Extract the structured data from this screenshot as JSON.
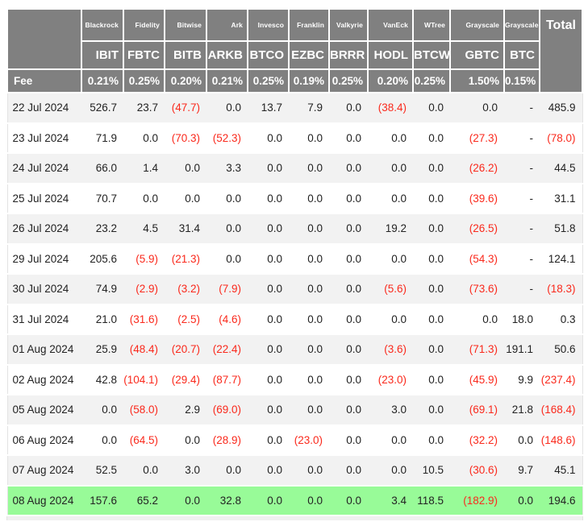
{
  "colors": {
    "header_bg": "#808080",
    "header_text": "#ffffff",
    "negative": "#fa291c",
    "text": "#222222",
    "zebra_row": "#f2f2f2",
    "white_row": "#ffffff",
    "highlight_row": "#98fb98"
  },
  "chart_data": {
    "type": "table",
    "fee_row_label": "Fee",
    "total_label": "Total",
    "value_placeholder": "-",
    "columns": [
      {
        "issuer": "Blackrock",
        "ticker": "IBIT",
        "fee": "0.21%"
      },
      {
        "issuer": "Fidelity",
        "ticker": "FBTC",
        "fee": "0.25%"
      },
      {
        "issuer": "Bitwise",
        "ticker": "BITB",
        "fee": "0.20%"
      },
      {
        "issuer": "Ark",
        "ticker": "ARKB",
        "fee": "0.21%"
      },
      {
        "issuer": "Invesco",
        "ticker": "BTCO",
        "fee": "0.25%"
      },
      {
        "issuer": "Franklin",
        "ticker": "EZBC",
        "fee": "0.19%"
      },
      {
        "issuer": "Valkyrie",
        "ticker": "BRRR",
        "fee": "0.25%"
      },
      {
        "issuer": "VanEck",
        "ticker": "HODL",
        "fee": "0.20%"
      },
      {
        "issuer": "WTree",
        "ticker": "BTCW",
        "fee": "0.25%"
      },
      {
        "issuer": "Grayscale",
        "ticker": "GBTC",
        "fee": "1.50%"
      },
      {
        "issuer": "Grayscale",
        "ticker": "BTC",
        "fee": "0.15%"
      }
    ],
    "rows": [
      {
        "date": "22 Jul 2024",
        "values": [
          526.7,
          23.7,
          -47.7,
          0.0,
          13.7,
          7.9,
          0.0,
          -38.4,
          0.0,
          0.0,
          null
        ],
        "total": 485.9,
        "highlight": false
      },
      {
        "date": "23 Jul 2024",
        "values": [
          71.9,
          0.0,
          -70.3,
          -52.3,
          0.0,
          0.0,
          0.0,
          0.0,
          0.0,
          -27.3,
          null
        ],
        "total": -78.0,
        "highlight": false
      },
      {
        "date": "24 Jul 2024",
        "values": [
          66.0,
          1.4,
          0.0,
          3.3,
          0.0,
          0.0,
          0.0,
          0.0,
          0.0,
          -26.2,
          null
        ],
        "total": 44.5,
        "highlight": false
      },
      {
        "date": "25 Jul 2024",
        "values": [
          70.7,
          0.0,
          0.0,
          0.0,
          0.0,
          0.0,
          0.0,
          0.0,
          0.0,
          -39.6,
          null
        ],
        "total": 31.1,
        "highlight": false
      },
      {
        "date": "26 Jul 2024",
        "values": [
          23.2,
          4.5,
          31.4,
          0.0,
          0.0,
          0.0,
          0.0,
          19.2,
          0.0,
          -26.5,
          null
        ],
        "total": 51.8,
        "highlight": false
      },
      {
        "date": "29 Jul 2024",
        "values": [
          205.6,
          -5.9,
          -21.3,
          0.0,
          0.0,
          0.0,
          0.0,
          0.0,
          0.0,
          -54.3,
          null
        ],
        "total": 124.1,
        "highlight": false
      },
      {
        "date": "30 Jul 2024",
        "values": [
          74.9,
          -2.9,
          -3.2,
          -7.9,
          0.0,
          0.0,
          0.0,
          -5.6,
          0.0,
          -73.6,
          null
        ],
        "total": -18.3,
        "highlight": false
      },
      {
        "date": "31 Jul 2024",
        "values": [
          21.0,
          -31.6,
          -2.5,
          -4.6,
          0.0,
          0.0,
          0.0,
          0.0,
          0.0,
          0.0,
          18.0
        ],
        "total": 0.3,
        "highlight": false
      },
      {
        "date": "01 Aug 2024",
        "values": [
          25.9,
          -48.4,
          -20.7,
          -22.4,
          0.0,
          0.0,
          0.0,
          -3.6,
          0.0,
          -71.3,
          191.1
        ],
        "total": 50.6,
        "highlight": false
      },
      {
        "date": "02 Aug 2024",
        "values": [
          42.8,
          -104.1,
          -29.4,
          -87.7,
          0.0,
          0.0,
          0.0,
          -23.0,
          0.0,
          -45.9,
          9.9
        ],
        "total": -237.4,
        "highlight": false
      },
      {
        "date": "05 Aug 2024",
        "values": [
          0.0,
          -58.0,
          2.9,
          -69.0,
          0.0,
          0.0,
          0.0,
          3.0,
          0.0,
          -69.1,
          21.8
        ],
        "total": -168.4,
        "highlight": false
      },
      {
        "date": "06 Aug 2024",
        "values": [
          0.0,
          -64.5,
          0.0,
          -28.9,
          0.0,
          -23.0,
          0.0,
          0.0,
          0.0,
          -32.2,
          0.0
        ],
        "total": -148.6,
        "highlight": false
      },
      {
        "date": "07 Aug 2024",
        "values": [
          52.5,
          0.0,
          3.0,
          0.0,
          0.0,
          0.0,
          0.0,
          0.0,
          10.5,
          -30.6,
          9.7
        ],
        "total": 45.1,
        "highlight": false
      },
      {
        "date": "08 Aug 2024",
        "values": [
          157.6,
          65.2,
          0.0,
          32.8,
          0.0,
          0.0,
          0.0,
          3.4,
          118.5,
          -182.9,
          0.0
        ],
        "total": 194.6,
        "highlight": true
      }
    ]
  }
}
